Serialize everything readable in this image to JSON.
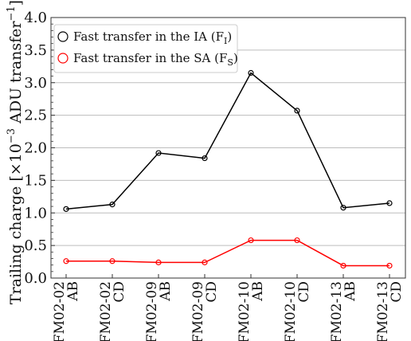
{
  "chart_data": {
    "type": "line",
    "categories": [
      [
        "FM02-02",
        "AB"
      ],
      [
        "FM02-02",
        "CD"
      ],
      [
        "FM02-09",
        "AB"
      ],
      [
        "FM02-09",
        "CD"
      ],
      [
        "FM02-10",
        "AB"
      ],
      [
        "FM02-10",
        "CD"
      ],
      [
        "FM02-13",
        "AB"
      ],
      [
        "FM02-13",
        "CD"
      ]
    ],
    "series": [
      {
        "name": "Fast transfer in the IA (F",
        "sub": "I",
        "suffix": ")",
        "color": "#000000",
        "values": [
          1.06,
          1.13,
          1.92,
          1.84,
          3.15,
          2.57,
          1.08,
          1.15
        ]
      },
      {
        "name": "Fast transfer in the SA (F",
        "sub": "S",
        "suffix": ")",
        "color": "#ff0000",
        "values": [
          0.26,
          0.26,
          0.24,
          0.24,
          0.58,
          0.58,
          0.19,
          0.19
        ]
      }
    ],
    "ylabel": "Trailing charge [×10",
    "ylabel_exp": "−3",
    "ylabel_rest": " ADU transfer",
    "ylabel_exp2": "−1",
    "ylabel_close": "]",
    "ylim": [
      0,
      4.0
    ],
    "yticks": [
      "0.0",
      "0.5",
      "1.0",
      "1.5",
      "2.0",
      "2.5",
      "3.0",
      "3.5",
      "4.0"
    ],
    "grid": "horizontal",
    "legend": "top-left"
  }
}
